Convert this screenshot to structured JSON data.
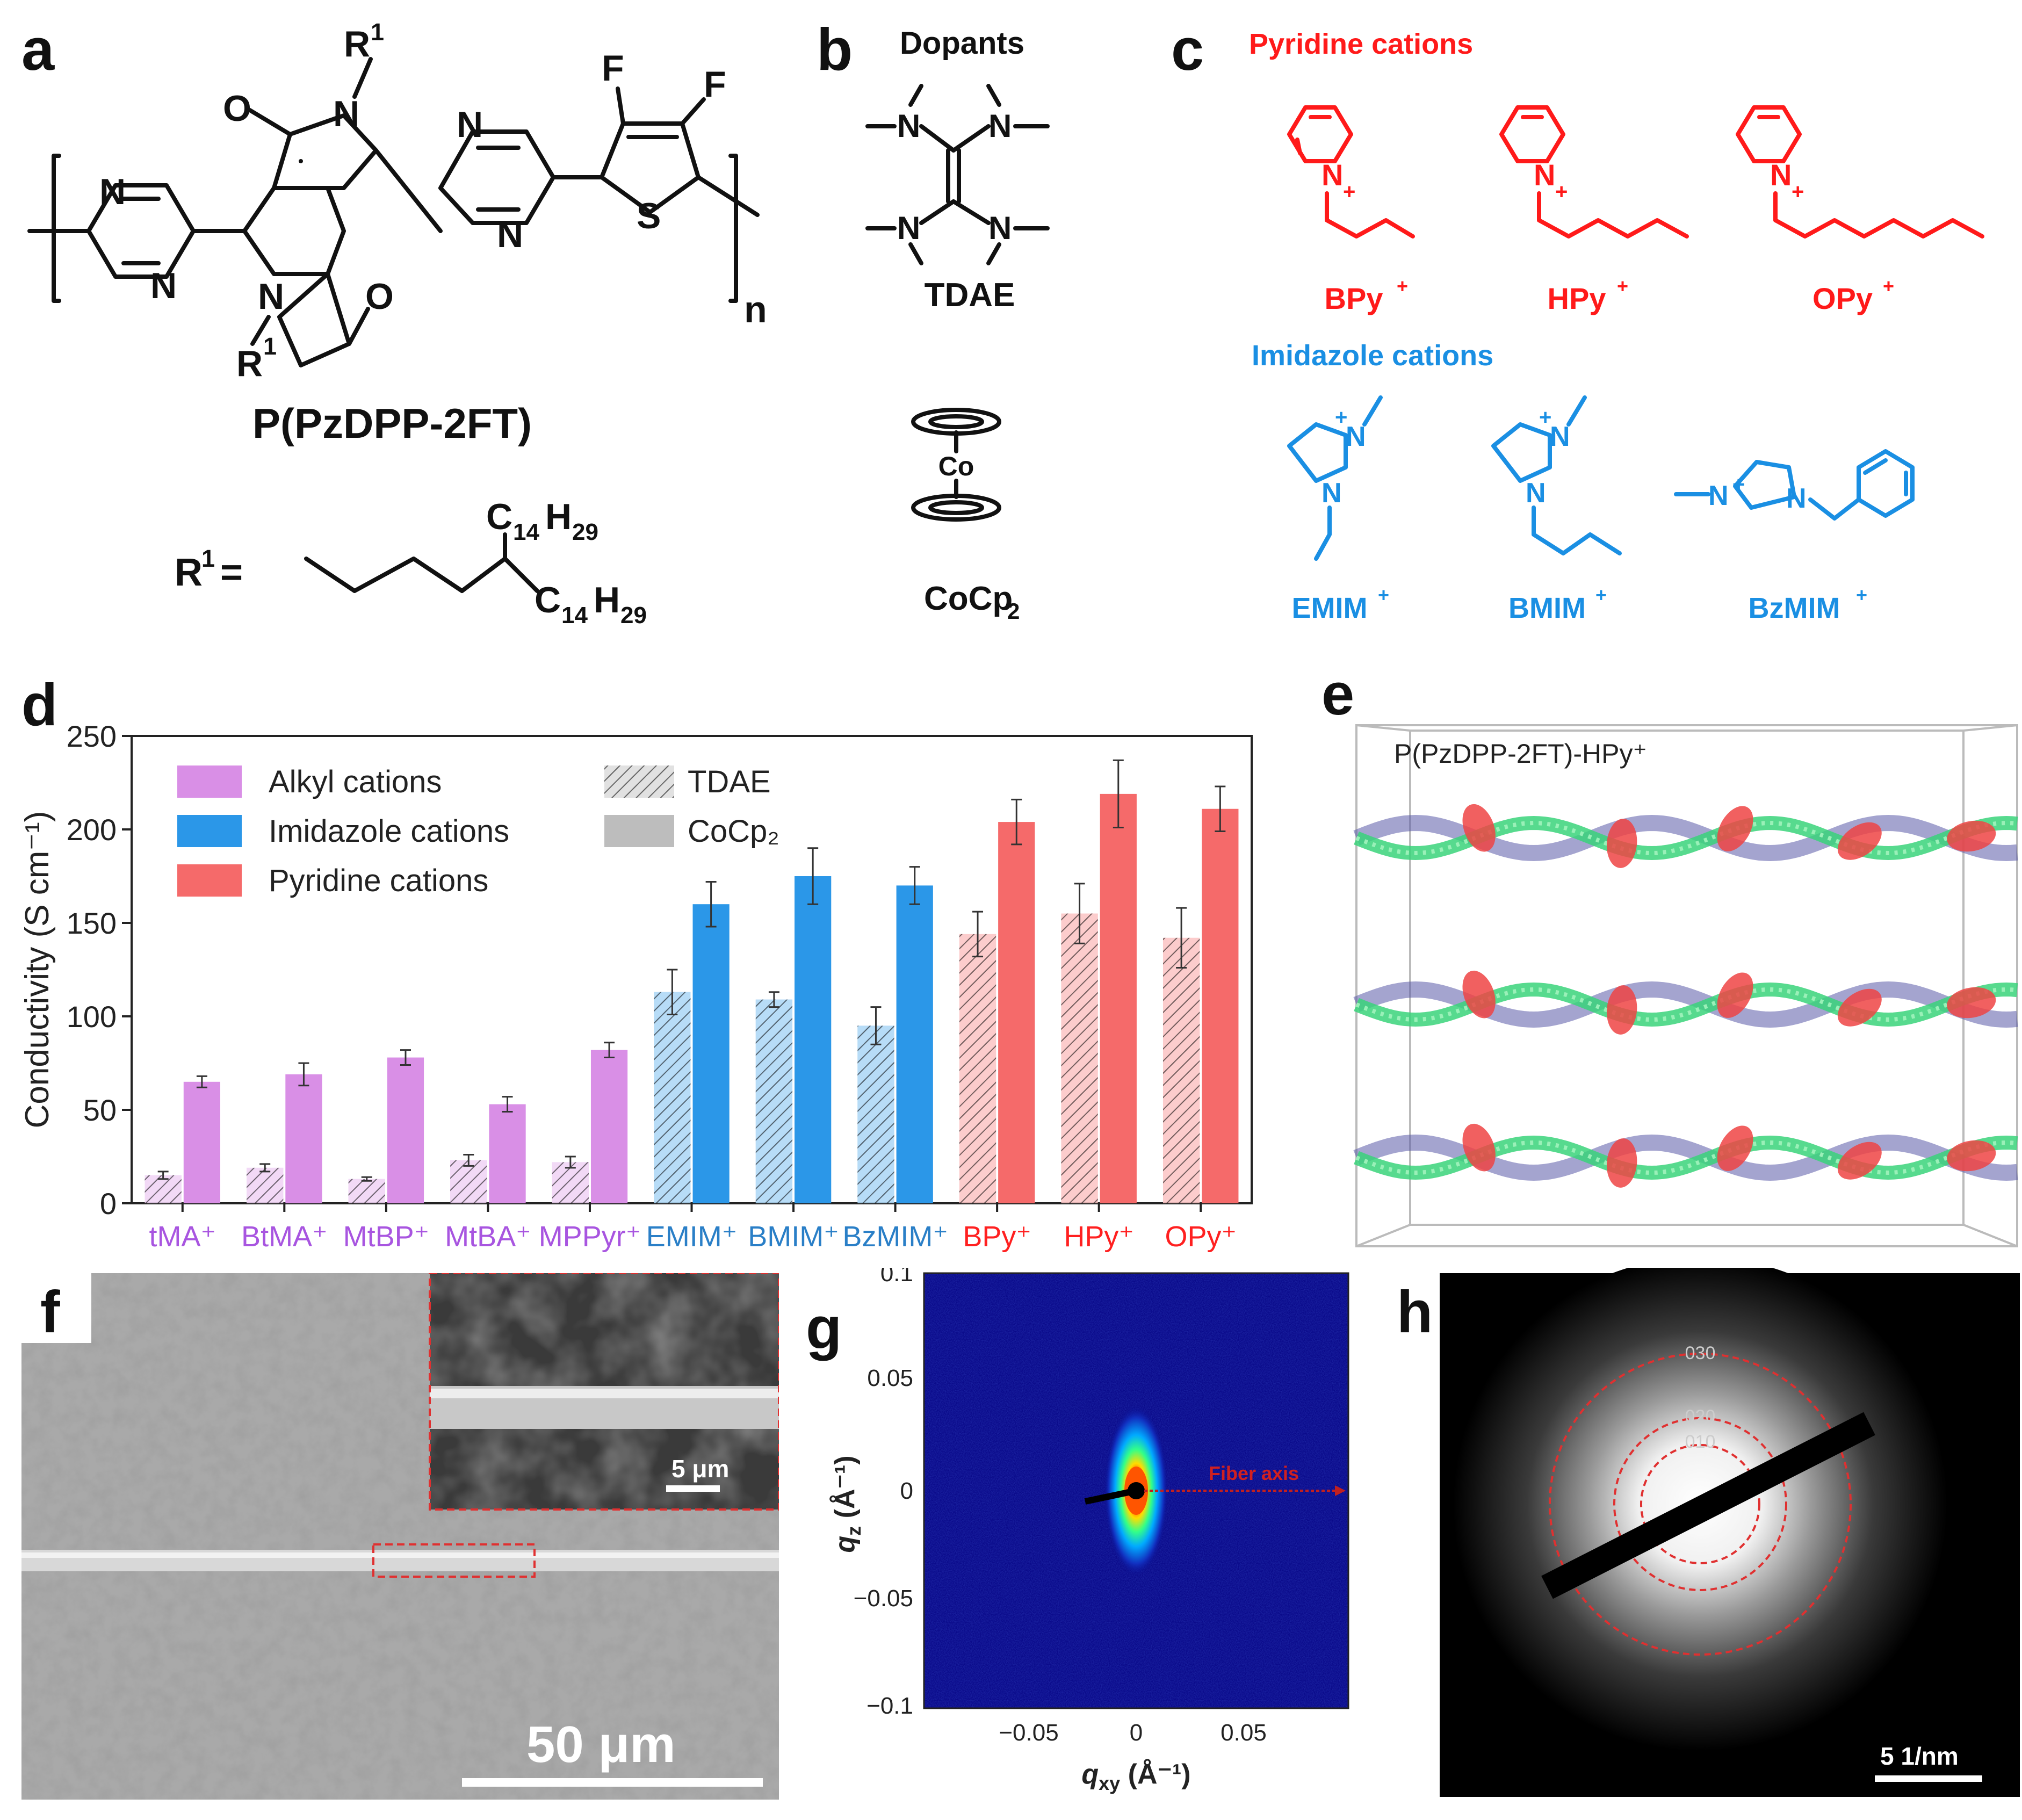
{
  "panels": {
    "a": {
      "letter": "a",
      "polymer_name": "P(PzDPP-2FT)",
      "r_group_label": "R",
      "r_sup": "1",
      "r_equals": "=",
      "side_chain_top": "C",
      "side_chain_sub1": "14",
      "side_chain_h": "H",
      "side_chain_sub2": "29",
      "repeat_n": "n",
      "atom_N": "N",
      "atom_O": "O",
      "atom_F": "F",
      "atom_S": "S"
    },
    "b": {
      "letter": "b",
      "title": "Dopants",
      "dopant1": "TDAE",
      "dopant2_main": "CoCp",
      "dopant2_sub": "2",
      "metal": "Co",
      "atom_N": "N"
    },
    "c": {
      "letter": "c",
      "pyridine_title": "Pyridine cations",
      "imidazole_title": "Imidazole cations",
      "pyridine": [
        "BPy",
        "HPy",
        "OPy"
      ],
      "imidazole": [
        "EMIM",
        "BMIM",
        "BzMIM"
      ],
      "charge": "+",
      "atom_N": "N"
    },
    "d": {
      "letter": "d"
    },
    "e": {
      "letter": "e",
      "label": "P(PzDPP-2FT)-HPy⁺"
    },
    "f": {
      "letter": "f",
      "scale_main": "50 μm",
      "scale_inset": "5 μm"
    },
    "g": {
      "letter": "g",
      "annotation": "Fiber axis",
      "ylabel_main": "q",
      "ylabel_sub": "z",
      "ylabel_unit": " (Å⁻¹)",
      "xlabel_main": "q",
      "xlabel_sub": "xy",
      "xlabel_unit": " (Å⁻¹)",
      "yticks": [
        "0.1",
        "0.05",
        "0",
        "−0.05",
        "−0.1"
      ],
      "xticks": [
        "−0.05",
        "0",
        "0.05"
      ]
    },
    "h": {
      "letter": "h",
      "rings": [
        "010",
        "020",
        "030"
      ],
      "scale": "5 1/nm"
    }
  },
  "chart_data": {
    "type": "bar",
    "ylabel": "Conductivity (S cm⁻¹)",
    "ylim": [
      0,
      250
    ],
    "yticks": [
      0,
      50,
      100,
      150,
      200,
      250
    ],
    "categories": [
      "tMA⁺",
      "BtMA⁺",
      "MtBP⁺",
      "MtBA⁺",
      "MPPyr⁺",
      "EMIM⁺",
      "BMIM⁺",
      "BzMIM⁺",
      "BPy⁺",
      "HPy⁺",
      "OPy⁺"
    ],
    "category_group": [
      "alkyl",
      "alkyl",
      "alkyl",
      "alkyl",
      "alkyl",
      "imidazole",
      "imidazole",
      "imidazole",
      "pyridine",
      "pyridine",
      "pyridine"
    ],
    "series": [
      {
        "name": "TDAE",
        "values": [
          15,
          19,
          13,
          23,
          22,
          113,
          109,
          95,
          144,
          155,
          142
        ],
        "errors": [
          2,
          2,
          1,
          3,
          3,
          12,
          4,
          10,
          12,
          16,
          16
        ]
      },
      {
        "name": "CoCp₂",
        "values": [
          65,
          69,
          78,
          53,
          82,
          160,
          175,
          170,
          204,
          219,
          211
        ],
        "errors": [
          3,
          6,
          4,
          4,
          4,
          12,
          15,
          10,
          12,
          18,
          12
        ]
      }
    ],
    "legend": {
      "groups": [
        {
          "label": "Alkyl cations",
          "color": "#d98fe6"
        },
        {
          "label": "Imidazole cations",
          "color": "#2b97e8"
        },
        {
          "label": "Pyridine cations",
          "color": "#f56a6a"
        }
      ],
      "dopants": [
        {
          "label": "TDAE",
          "style": "hatched"
        },
        {
          "label": "CoCp₂",
          "style": "solid"
        }
      ]
    },
    "colors": {
      "alkyl": "#d98fe6",
      "imidazole": "#2b97e8",
      "pyridine": "#f56a6a",
      "alkyl_text": "#a855e0",
      "imidazole_text": "#2a7fc7",
      "pyridine_text": "#ff2020"
    },
    "grid": false
  }
}
